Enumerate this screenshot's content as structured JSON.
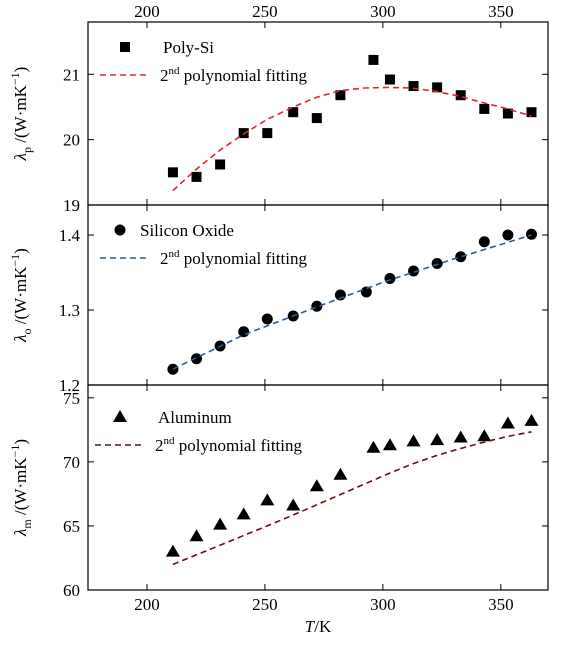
{
  "chart_data": [
    {
      "type": "scatter",
      "panel": "top",
      "xlim": [
        175,
        370
      ],
      "ylim": [
        19,
        21.8
      ],
      "yticks": [
        "19",
        "20",
        "21"
      ],
      "top_xticks": [
        "200",
        "250",
        "300",
        "350"
      ],
      "ylabel": {
        "sym": "λ",
        "sub": "p",
        "units": "/(W·mK",
        "sup": "−1",
        "close": ")"
      },
      "series": [
        {
          "name": "Poly-Si",
          "marker": "square",
          "color": "#000000",
          "x": [
            211,
            221,
            231,
            241,
            251,
            262,
            272,
            282,
            296,
            303,
            313,
            323,
            333,
            343,
            353,
            363
          ],
          "y": [
            19.5,
            19.43,
            19.62,
            20.1,
            20.1,
            20.42,
            20.33,
            20.68,
            21.22,
            20.92,
            20.82,
            20.8,
            20.68,
            20.47,
            20.4,
            20.42
          ]
        },
        {
          "name": "polynomial fitting",
          "name_prefix": "2",
          "name_sup": "nd",
          "style": "dashed",
          "color": "#e0262c",
          "x": [
            211,
            221,
            231,
            241,
            251,
            262,
            272,
            282,
            292,
            302,
            312,
            322,
            332,
            342,
            352,
            363
          ],
          "y": [
            19.22,
            19.55,
            19.84,
            20.09,
            20.31,
            20.5,
            20.65,
            20.75,
            20.79,
            20.8,
            20.79,
            20.74,
            20.67,
            20.57,
            20.48,
            20.36
          ]
        }
      ]
    },
    {
      "type": "scatter",
      "panel": "middle",
      "xlim": [
        175,
        370
      ],
      "ylim": [
        1.2,
        1.44
      ],
      "yticks": [
        "1.2",
        "1.3",
        "1.4"
      ],
      "ylabel": {
        "sym": "λ",
        "sub": "o",
        "units": "/(W·mK",
        "sup": "−1",
        "close": ")"
      },
      "series": [
        {
          "name": "Silicon Oxide",
          "marker": "circle",
          "color": "#000000",
          "x": [
            211,
            221,
            231,
            241,
            251,
            262,
            272,
            282,
            293,
            303,
            313,
            323,
            333,
            343,
            353,
            363
          ],
          "y": [
            1.221,
            1.235,
            1.252,
            1.271,
            1.288,
            1.292,
            1.305,
            1.32,
            1.324,
            1.342,
            1.352,
            1.362,
            1.371,
            1.391,
            1.4,
            1.401
          ]
        },
        {
          "name": "polynomial fitting",
          "name_prefix": "2",
          "name_sup": "nd",
          "style": "dashed",
          "color": "#2f5d8a",
          "x": [
            211,
            241,
            271,
            301,
            331,
            363
          ],
          "y": [
            1.221,
            1.267,
            1.303,
            1.338,
            1.369,
            1.4
          ]
        }
      ]
    },
    {
      "type": "scatter",
      "panel": "bottom",
      "xlim": [
        175,
        370
      ],
      "ylim": [
        60,
        76
      ],
      "yticks": [
        "60",
        "65",
        "70",
        "75"
      ],
      "xticks": [
        "200",
        "250",
        "300",
        "350"
      ],
      "xlabel": {
        "sym": "T",
        "units": "/K"
      },
      "ylabel": {
        "sym": "λ",
        "sub": "m",
        "units": "/(W·mK",
        "sup": "−1",
        "close": ")"
      },
      "series": [
        {
          "name": "Aluminum",
          "marker": "triangle",
          "color": "#000000",
          "x": [
            211,
            221,
            231,
            241,
            251,
            262,
            272,
            282,
            296,
            303,
            313,
            323,
            333,
            343,
            353,
            363
          ],
          "y": [
            63.0,
            64.2,
            65.1,
            65.9,
            67.0,
            66.6,
            68.1,
            69.0,
            71.1,
            71.3,
            71.6,
            71.7,
            71.9,
            72.0,
            73.0,
            73.2
          ]
        },
        {
          "name": "polynomial fitting",
          "name_prefix": "2",
          "name_sup": "nd",
          "style": "dashed",
          "color": "#6b0f0f",
          "x": [
            211,
            221,
            231,
            241,
            251,
            262,
            272,
            282,
            292,
            302,
            312,
            322,
            332,
            342,
            352,
            363
          ],
          "y": [
            62.0,
            62.75,
            63.5,
            64.25,
            65.0,
            65.85,
            66.65,
            67.45,
            68.25,
            69.05,
            69.8,
            70.45,
            71.0,
            71.5,
            71.95,
            72.35
          ]
        }
      ]
    }
  ]
}
